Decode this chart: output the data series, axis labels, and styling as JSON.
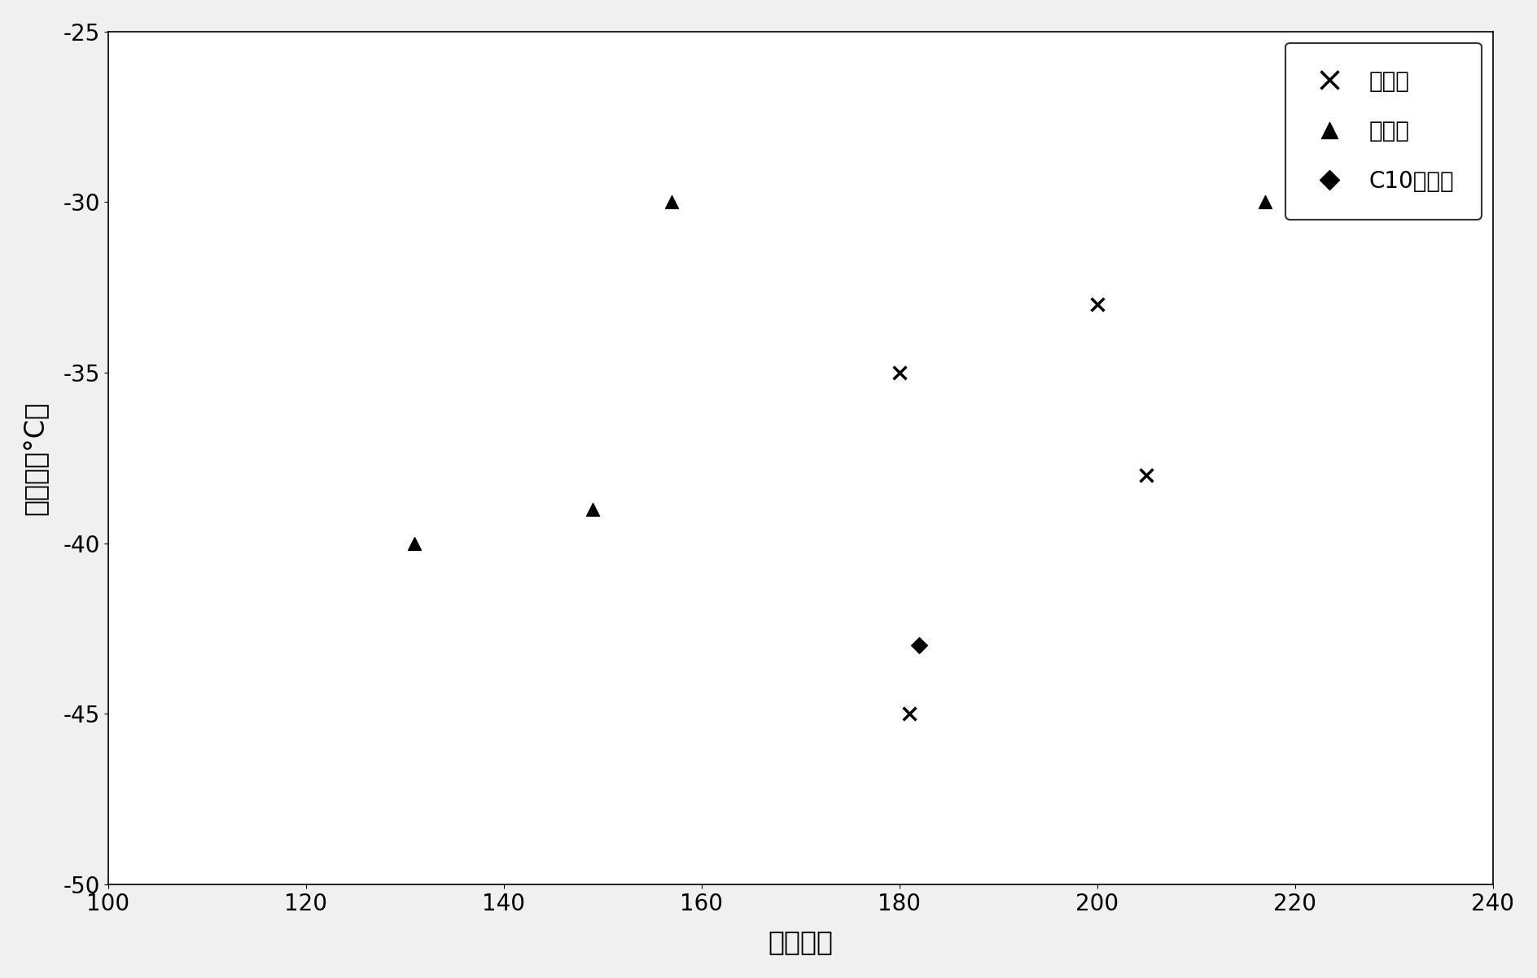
{
  "title": "",
  "xlabel": "粘度指数",
  "ylabel": "流动点（°C）",
  "xlim": [
    100,
    240
  ],
  "ylim": [
    -50,
    -25
  ],
  "xticks": [
    100,
    120,
    140,
    160,
    180,
    200,
    220,
    240
  ],
  "yticks": [
    -50,
    -45,
    -40,
    -35,
    -30,
    -25
  ],
  "series": {
    "shishi": {
      "label": "实施例",
      "marker": "x",
      "color": "#000000",
      "markersize": 130,
      "linewidth": 2.5,
      "x": [
        180,
        181,
        200,
        205
      ],
      "y": [
        -35,
        -45,
        -33,
        -38
      ]
    },
    "bijiao": {
      "label": "比较例",
      "marker": "^",
      "color": "#000000",
      "markersize": 130,
      "x": [
        131,
        149,
        157,
        217
      ],
      "y": [
        -40,
        -39,
        -30,
        -30
      ]
    },
    "c10": {
      "label": "C10聚合物",
      "marker": "D",
      "color": "#000000",
      "markersize": 100,
      "x": [
        182
      ],
      "y": [
        -43
      ]
    }
  },
  "background_color": "#f0f0f0",
  "plot_background": "#ffffff",
  "legend_loc": "upper right",
  "grid": false,
  "tick_fontsize": 20,
  "label_fontsize": 24,
  "legend_fontsize": 20
}
